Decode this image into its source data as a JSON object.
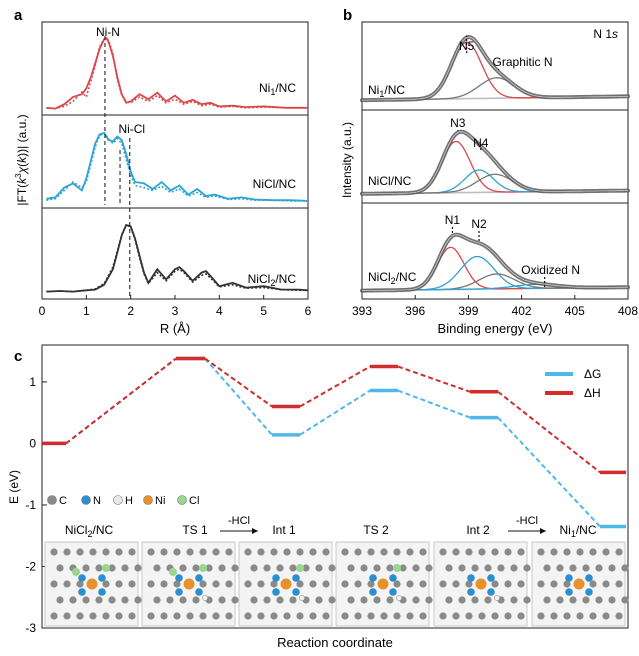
{
  "panels": {
    "a": {
      "letter": "a",
      "ylabel": "|FT(k³χ(k))| (a.u.)",
      "xlabel": "R (Å)",
      "xlim": [
        0,
        6
      ],
      "xticks": [
        "0",
        "1",
        "2",
        "3",
        "4",
        "5",
        "6"
      ],
      "markers": [
        {
          "label": "Ni-N",
          "x": 1.42
        },
        {
          "label": "Ni-Cl",
          "x": 1.98
        }
      ],
      "subpanels": [
        {
          "label": "Ni1/NC",
          "color": "#d9484b",
          "r": [
            0.1,
            0.3,
            0.5,
            0.7,
            0.9,
            1.0,
            1.1,
            1.2,
            1.3,
            1.4,
            1.45,
            1.5,
            1.6,
            1.7,
            1.8,
            1.9,
            2.0,
            2.2,
            2.4,
            2.6,
            2.8,
            3.0,
            3.2,
            3.4,
            3.6,
            3.8,
            4.0,
            4.3,
            4.6,
            5.0,
            5.5,
            6.0
          ],
          "fit": [
            0.03,
            0.02,
            0.08,
            0.18,
            0.22,
            0.3,
            0.45,
            0.65,
            0.85,
            0.98,
            1.0,
            0.95,
            0.75,
            0.45,
            0.22,
            0.1,
            0.12,
            0.22,
            0.15,
            0.24,
            0.12,
            0.2,
            0.1,
            0.14,
            0.08,
            0.1,
            0.05,
            0.06,
            0.04,
            0.05,
            0.03,
            0.03
          ],
          "exp": [
            0.03,
            0.02,
            0.05,
            0.12,
            0.25,
            0.18,
            0.4,
            0.62,
            0.88,
            0.98,
            1.0,
            0.97,
            0.78,
            0.42,
            0.2,
            0.12,
            0.1,
            0.18,
            0.12,
            0.2,
            0.1,
            0.15,
            0.08,
            0.12,
            0.06,
            0.08,
            0.04,
            0.05,
            0.03,
            0.04,
            0.03,
            0.03
          ]
        },
        {
          "label": "NiCl/NC",
          "color": "#2ea3d6",
          "r": [
            0.1,
            0.3,
            0.5,
            0.7,
            0.9,
            1.0,
            1.1,
            1.2,
            1.3,
            1.4,
            1.5,
            1.6,
            1.7,
            1.8,
            1.9,
            2.0,
            2.1,
            2.3,
            2.5,
            2.7,
            2.9,
            3.1,
            3.3,
            3.5,
            3.7,
            3.9,
            4.2,
            4.5,
            4.8,
            5.2,
            5.6,
            6.0
          ],
          "fit": [
            0.06,
            0.08,
            0.22,
            0.28,
            0.18,
            0.35,
            0.6,
            0.85,
            0.98,
            1.0,
            0.9,
            0.88,
            0.95,
            0.9,
            0.7,
            0.45,
            0.3,
            0.28,
            0.2,
            0.3,
            0.18,
            0.25,
            0.12,
            0.2,
            0.1,
            0.12,
            0.06,
            0.08,
            0.05,
            0.04,
            0.04,
            0.03
          ],
          "exp": [
            0.04,
            0.06,
            0.18,
            0.3,
            0.22,
            0.3,
            0.55,
            0.8,
            0.96,
            1.0,
            0.92,
            0.85,
            0.92,
            0.85,
            0.62,
            0.4,
            0.25,
            0.22,
            0.18,
            0.24,
            0.15,
            0.2,
            0.1,
            0.15,
            0.08,
            0.1,
            0.05,
            0.06,
            0.04,
            0.04,
            0.03,
            0.03
          ]
        },
        {
          "label": "NiCl2/NC",
          "color": "#333333",
          "r": [
            0.1,
            0.4,
            0.7,
            1.0,
            1.2,
            1.4,
            1.6,
            1.7,
            1.8,
            1.9,
            2.0,
            2.1,
            2.2,
            2.3,
            2.4,
            2.6,
            2.8,
            3.0,
            3.1,
            3.2,
            3.4,
            3.6,
            3.7,
            3.8,
            4.0,
            4.3,
            4.6,
            5.0,
            5.4,
            5.8,
            6.0
          ],
          "fit": [
            0.02,
            0.03,
            0.02,
            0.04,
            0.05,
            0.12,
            0.35,
            0.6,
            0.85,
            1.0,
            0.98,
            0.8,
            0.55,
            0.3,
            0.15,
            0.35,
            0.2,
            0.35,
            0.38,
            0.32,
            0.18,
            0.3,
            0.32,
            0.25,
            0.1,
            0.15,
            0.08,
            0.1,
            0.05,
            0.05,
            0.04
          ],
          "exp": [
            0.02,
            0.03,
            0.02,
            0.04,
            0.06,
            0.14,
            0.38,
            0.62,
            0.86,
            1.0,
            0.97,
            0.78,
            0.52,
            0.28,
            0.14,
            0.3,
            0.18,
            0.32,
            0.35,
            0.3,
            0.16,
            0.26,
            0.28,
            0.22,
            0.09,
            0.12,
            0.07,
            0.08,
            0.05,
            0.04,
            0.04
          ]
        }
      ]
    },
    "b": {
      "letter": "b",
      "title": "N 1s",
      "ylabel": "Intensity (a.u.)",
      "xlabel": "Binding energy (eV)",
      "xlim": [
        393,
        408
      ],
      "xticks": [
        "393",
        "396",
        "399",
        "402",
        "405",
        "408"
      ],
      "subpanels": [
        {
          "label": "Ni1/NC",
          "peak_labels": [
            {
              "text": "N5",
              "x": 398.9
            },
            {
              "text": "Graphitic N",
              "x": 400.7
            }
          ],
          "components": [
            {
              "center": 398.9,
              "height": 0.88,
              "width": 0.85,
              "color": "#d9484b"
            },
            {
              "center": 400.6,
              "height": 0.32,
              "width": 1.0,
              "color": "#777777"
            }
          ],
          "baseline": 0.06
        },
        {
          "label": "NiCl/NC",
          "peak_labels": [
            {
              "text": "N3",
              "x": 398.4
            },
            {
              "text": "N4",
              "x": 399.7
            }
          ],
          "components": [
            {
              "center": 398.3,
              "height": 0.8,
              "width": 0.8,
              "color": "#d9484b"
            },
            {
              "center": 399.6,
              "height": 0.35,
              "width": 0.8,
              "color": "#2ea3d6"
            },
            {
              "center": 400.5,
              "height": 0.28,
              "width": 1.0,
              "color": "#777777"
            }
          ],
          "baseline": 0.05
        },
        {
          "label": "NiCl2/NC",
          "peak_labels": [
            {
              "text": "N1",
              "x": 398.1
            },
            {
              "text": "N2",
              "x": 399.6
            },
            {
              "text": "Oxidized N",
              "x": 403.3
            }
          ],
          "components": [
            {
              "center": 398.0,
              "height": 0.62,
              "width": 0.75,
              "color": "#d9484b"
            },
            {
              "center": 399.5,
              "height": 0.48,
              "width": 0.95,
              "color": "#2ea3d6"
            },
            {
              "center": 400.6,
              "height": 0.22,
              "width": 1.0,
              "color": "#777777"
            },
            {
              "center": 402.8,
              "height": 0.06,
              "width": 1.2,
              "color": "#2ea3d6"
            }
          ],
          "baseline": 0.05
        }
      ]
    },
    "c": {
      "letter": "c",
      "ylabel": "E (eV)",
      "xlabel": "Reaction coordinate",
      "ylim": [
        -3,
        1.6
      ],
      "yticks": [
        "-3",
        "-2",
        "-1",
        "0",
        "1"
      ],
      "legend": [
        {
          "label": "ΔG",
          "color": "#4fb8e6"
        },
        {
          "label": "ΔH",
          "color": "#d22c2c"
        }
      ],
      "states": [
        "NiCl2/NC",
        "TS 1",
        "Int 1",
        "TS 2",
        "Int 2",
        "Ni1/NC"
      ],
      "dG": [
        0.0,
        1.38,
        0.14,
        0.86,
        0.42,
        -1.35
      ],
      "dH": [
        0.0,
        1.38,
        0.6,
        1.25,
        0.84,
        -0.47
      ],
      "arrow_text": [
        "-HCl",
        "-HCl"
      ],
      "atom_legend": [
        {
          "symbol": "C",
          "color": "#8a8a8a"
        },
        {
          "symbol": "N",
          "color": "#2b8fcf"
        },
        {
          "symbol": "H",
          "color": "#e8e8e8"
        },
        {
          "symbol": "Ni",
          "color": "#e8912c"
        },
        {
          "symbol": "Cl",
          "color": "#9ad68e"
        }
      ]
    }
  }
}
